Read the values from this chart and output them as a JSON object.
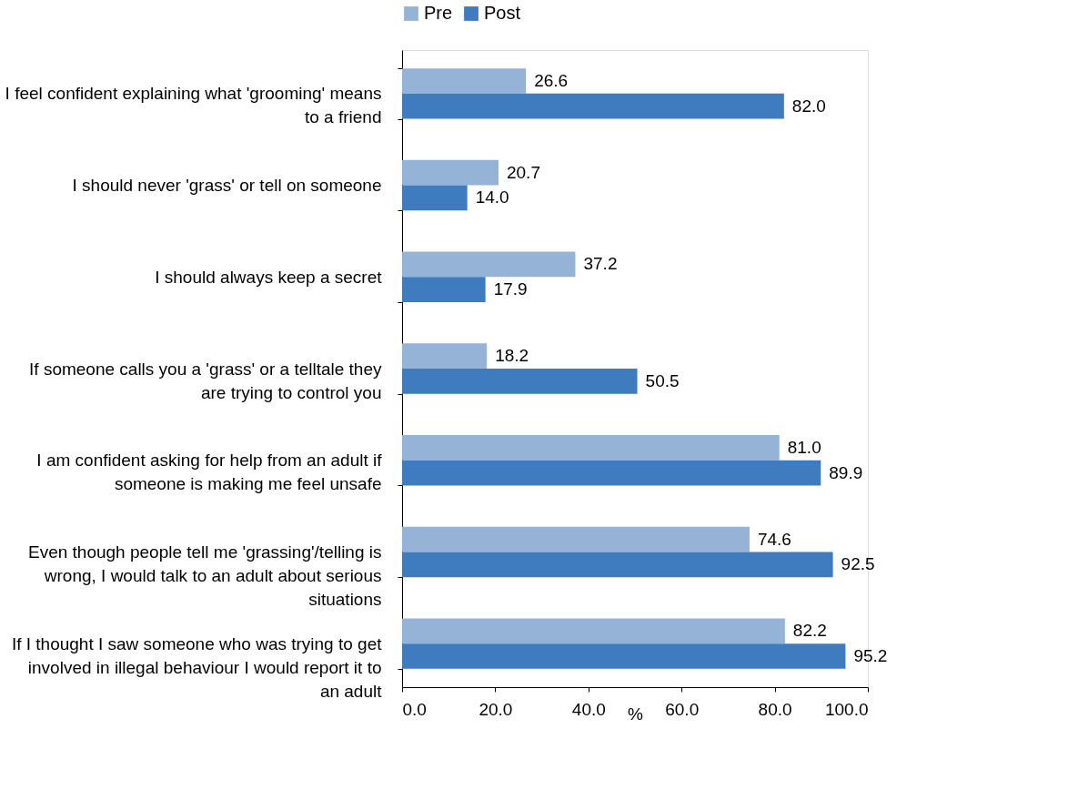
{
  "chart_data": {
    "type": "bar",
    "orientation": "horizontal",
    "xlabel": "%",
    "categories": [
      "I feel confident explaining what 'grooming' means to a friend",
      "I should never 'grass' or tell on someone",
      "I should always keep a secret",
      "If someone calls you a 'grass' or a telltale they are trying to control you",
      "I am confident asking for help from an adult if someone is making me feel unsafe",
      "Even though people tell me 'grassing'/telling is wrong, I would talk to an adult about serious situations",
      "If I thought I saw someone who was trying to get involved in illegal behaviour I would report it to an adult"
    ],
    "series": [
      {
        "name": "Pre",
        "color": "#95b3d7",
        "values": [
          26.6,
          20.7,
          37.2,
          18.2,
          81.0,
          74.6,
          82.2
        ],
        "value_labels": [
          "26.6",
          "20.7",
          "37.2",
          "18.2",
          "81.0",
          "74.6",
          "82.2"
        ]
      },
      {
        "name": "Post",
        "color": "#3f7cbf",
        "values": [
          82.0,
          14.0,
          17.9,
          50.5,
          89.9,
          92.5,
          95.2
        ],
        "value_labels": [
          "82.0",
          "14.0",
          "17.9",
          "50.5",
          "89.9",
          "92.5",
          "95.2"
        ]
      }
    ],
    "xlim": [
      0,
      100
    ],
    "xticks": [
      {
        "value": 0,
        "label": "0.0"
      },
      {
        "value": 20,
        "label": "20.0"
      },
      {
        "value": 40,
        "label": "40.0"
      },
      {
        "value": 60,
        "label": "60.0"
      },
      {
        "value": 80,
        "label": "80.0"
      },
      {
        "value": 100,
        "label": "100.0"
      }
    ],
    "grid": false,
    "legend": "top"
  }
}
